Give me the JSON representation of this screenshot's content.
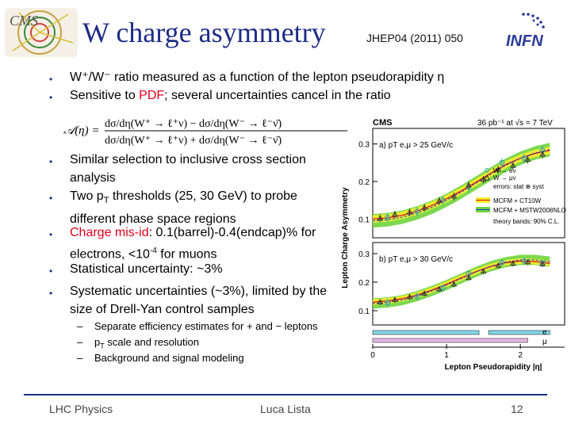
{
  "title": "W charge asymmetry",
  "reference": "JHEP04 (2011) 050",
  "bullets_top": [
    "W⁺/W⁻ ratio measured as a function of the lepton pseudorapidity η",
    "Sensitive to PDF; several uncertainties cancel in the ratio"
  ],
  "formula": {
    "lhs": "𝒜(η) =",
    "numerator": "dσ/dη(W⁺ → ℓ⁺ν) − dσ/dη(W⁻ → ℓ⁻ν̄)",
    "denominator": "dσ/dη(W⁺ → ℓ⁺ν) + dσ/dη(W⁻ → ℓ⁻ν̄)"
  },
  "bullets_main": [
    {
      "parts": [
        "Similar selection to inclusive cross section analysis"
      ]
    },
    {
      "parts": [
        "Two p",
        "T",
        " thresholds (25, 30 GeV) to probe different phase space regions"
      ]
    },
    {
      "parts": [
        "Charge mis-id: 0.1(barrel)-0.4(endcap)% for electrons, <10",
        "-4",
        " for muons"
      ]
    },
    {
      "parts": [
        "Statistical uncertainty: ~3%"
      ]
    },
    {
      "parts": [
        "Systematic uncertainties (~3%), limited by the size of Drell-Yan control samples"
      ]
    }
  ],
  "sub_bullets": [
    "Separate efficiency estimates for + and − leptons",
    "pT scale and resolution",
    "Background and signal modeling"
  ],
  "footer": {
    "left": "LHC Physics",
    "center": "Luca Lista",
    "page": "12"
  },
  "colors": {
    "title": "#1d2c86",
    "red": "#e0001b",
    "band_yellow": "#f3ee2a",
    "band_green": "#6fd43c",
    "curve_red": "#e0001b",
    "curve_blue": "#1a3cc8",
    "electron": "#3aa6a6",
    "muon": "#333333"
  },
  "logos": {
    "left": "CMS",
    "right": "INFN"
  },
  "chart_data": {
    "type": "scatter",
    "header_left": "CMS",
    "header_right": "36 pb⁻¹ at √s = 7 TeV",
    "ylabel": "Lepton Charge Asymmetry",
    "xlabel": "Lepton Pseudorapidity |η|",
    "x_ticks": [
      "0",
      "1",
      "2"
    ],
    "xlim": [
      0,
      2.6
    ],
    "panels": [
      {
        "label": "a) pT e,μ > 25 GeV/c",
        "ylim": [
          0.05,
          0.35
        ],
        "y_ticks": [
          "0.1",
          "0.2",
          "0.3"
        ],
        "legend": [
          "W → eν",
          "W → μν",
          "errors: stat ⊕ syst",
          "MCFM + CT10W",
          "MCFM + MSTW2008NLO",
          "theory bands: 90% C.L."
        ],
        "theory_x": [
          0,
          0.2,
          0.4,
          0.6,
          0.8,
          1.0,
          1.2,
          1.4,
          1.6,
          1.8,
          2.0,
          2.2,
          2.4
        ],
        "theory_ct10w": [
          0.1,
          0.103,
          0.11,
          0.121,
          0.136,
          0.154,
          0.175,
          0.198,
          0.222,
          0.245,
          0.262,
          0.275,
          0.283
        ],
        "theory_mstw": [
          0.095,
          0.098,
          0.105,
          0.116,
          0.131,
          0.15,
          0.172,
          0.196,
          0.22,
          0.243,
          0.262,
          0.276,
          0.285
        ],
        "electron": [
          [
            0.2,
            0.104
          ],
          [
            0.6,
            0.12
          ],
          [
            0.95,
            0.15
          ],
          [
            1.3,
            0.185
          ],
          [
            1.75,
            0.25
          ],
          [
            2.05,
            0.262
          ],
          [
            2.3,
            0.283
          ]
        ],
        "muon": [
          [
            0.1,
            0.102
          ],
          [
            0.3,
            0.112
          ],
          [
            0.5,
            0.118
          ],
          [
            0.7,
            0.13
          ],
          [
            0.9,
            0.148
          ],
          [
            1.1,
            0.16
          ],
          [
            1.3,
            0.19
          ],
          [
            1.5,
            0.205
          ],
          [
            1.7,
            0.232
          ],
          [
            1.9,
            0.242
          ],
          [
            2.1,
            0.258
          ],
          [
            2.3,
            0.272
          ]
        ]
      },
      {
        "label": "b) pT e,μ > 30 GeV/c",
        "ylim": [
          0.05,
          0.35
        ],
        "y_ticks": [
          "0.1",
          "0.2",
          "0.3"
        ],
        "legend": [],
        "theory_x": [
          0,
          0.2,
          0.4,
          0.6,
          0.8,
          1.0,
          1.2,
          1.4,
          1.6,
          1.8,
          2.0,
          2.2,
          2.4
        ],
        "theory_ct10w": [
          0.13,
          0.134,
          0.142,
          0.155,
          0.172,
          0.193,
          0.215,
          0.237,
          0.255,
          0.268,
          0.274,
          0.272,
          0.266
        ],
        "theory_mstw": [
          0.125,
          0.129,
          0.137,
          0.151,
          0.169,
          0.19,
          0.213,
          0.236,
          0.256,
          0.27,
          0.278,
          0.278,
          0.272
        ],
        "electron": [
          [
            0.2,
            0.128
          ],
          [
            0.6,
            0.15
          ],
          [
            0.95,
            0.18
          ],
          [
            1.3,
            0.23
          ],
          [
            1.75,
            0.268
          ],
          [
            2.05,
            0.274
          ],
          [
            2.3,
            0.266
          ]
        ],
        "muon": [
          [
            0.1,
            0.13
          ],
          [
            0.3,
            0.138
          ],
          [
            0.5,
            0.148
          ],
          [
            0.7,
            0.16
          ],
          [
            0.9,
            0.175
          ],
          [
            1.1,
            0.192
          ],
          [
            1.3,
            0.215
          ],
          [
            1.5,
            0.238
          ],
          [
            1.7,
            0.258
          ],
          [
            1.9,
            0.265
          ],
          [
            2.1,
            0.27
          ],
          [
            2.3,
            0.263
          ]
        ]
      }
    ],
    "acceptance": {
      "labels": [
        "e",
        "μ"
      ],
      "electron_ranges": [
        [
          0,
          1.44
        ],
        [
          1.57,
          2.4
        ]
      ],
      "muon_ranges": [
        [
          0,
          2.1
        ]
      ]
    }
  }
}
